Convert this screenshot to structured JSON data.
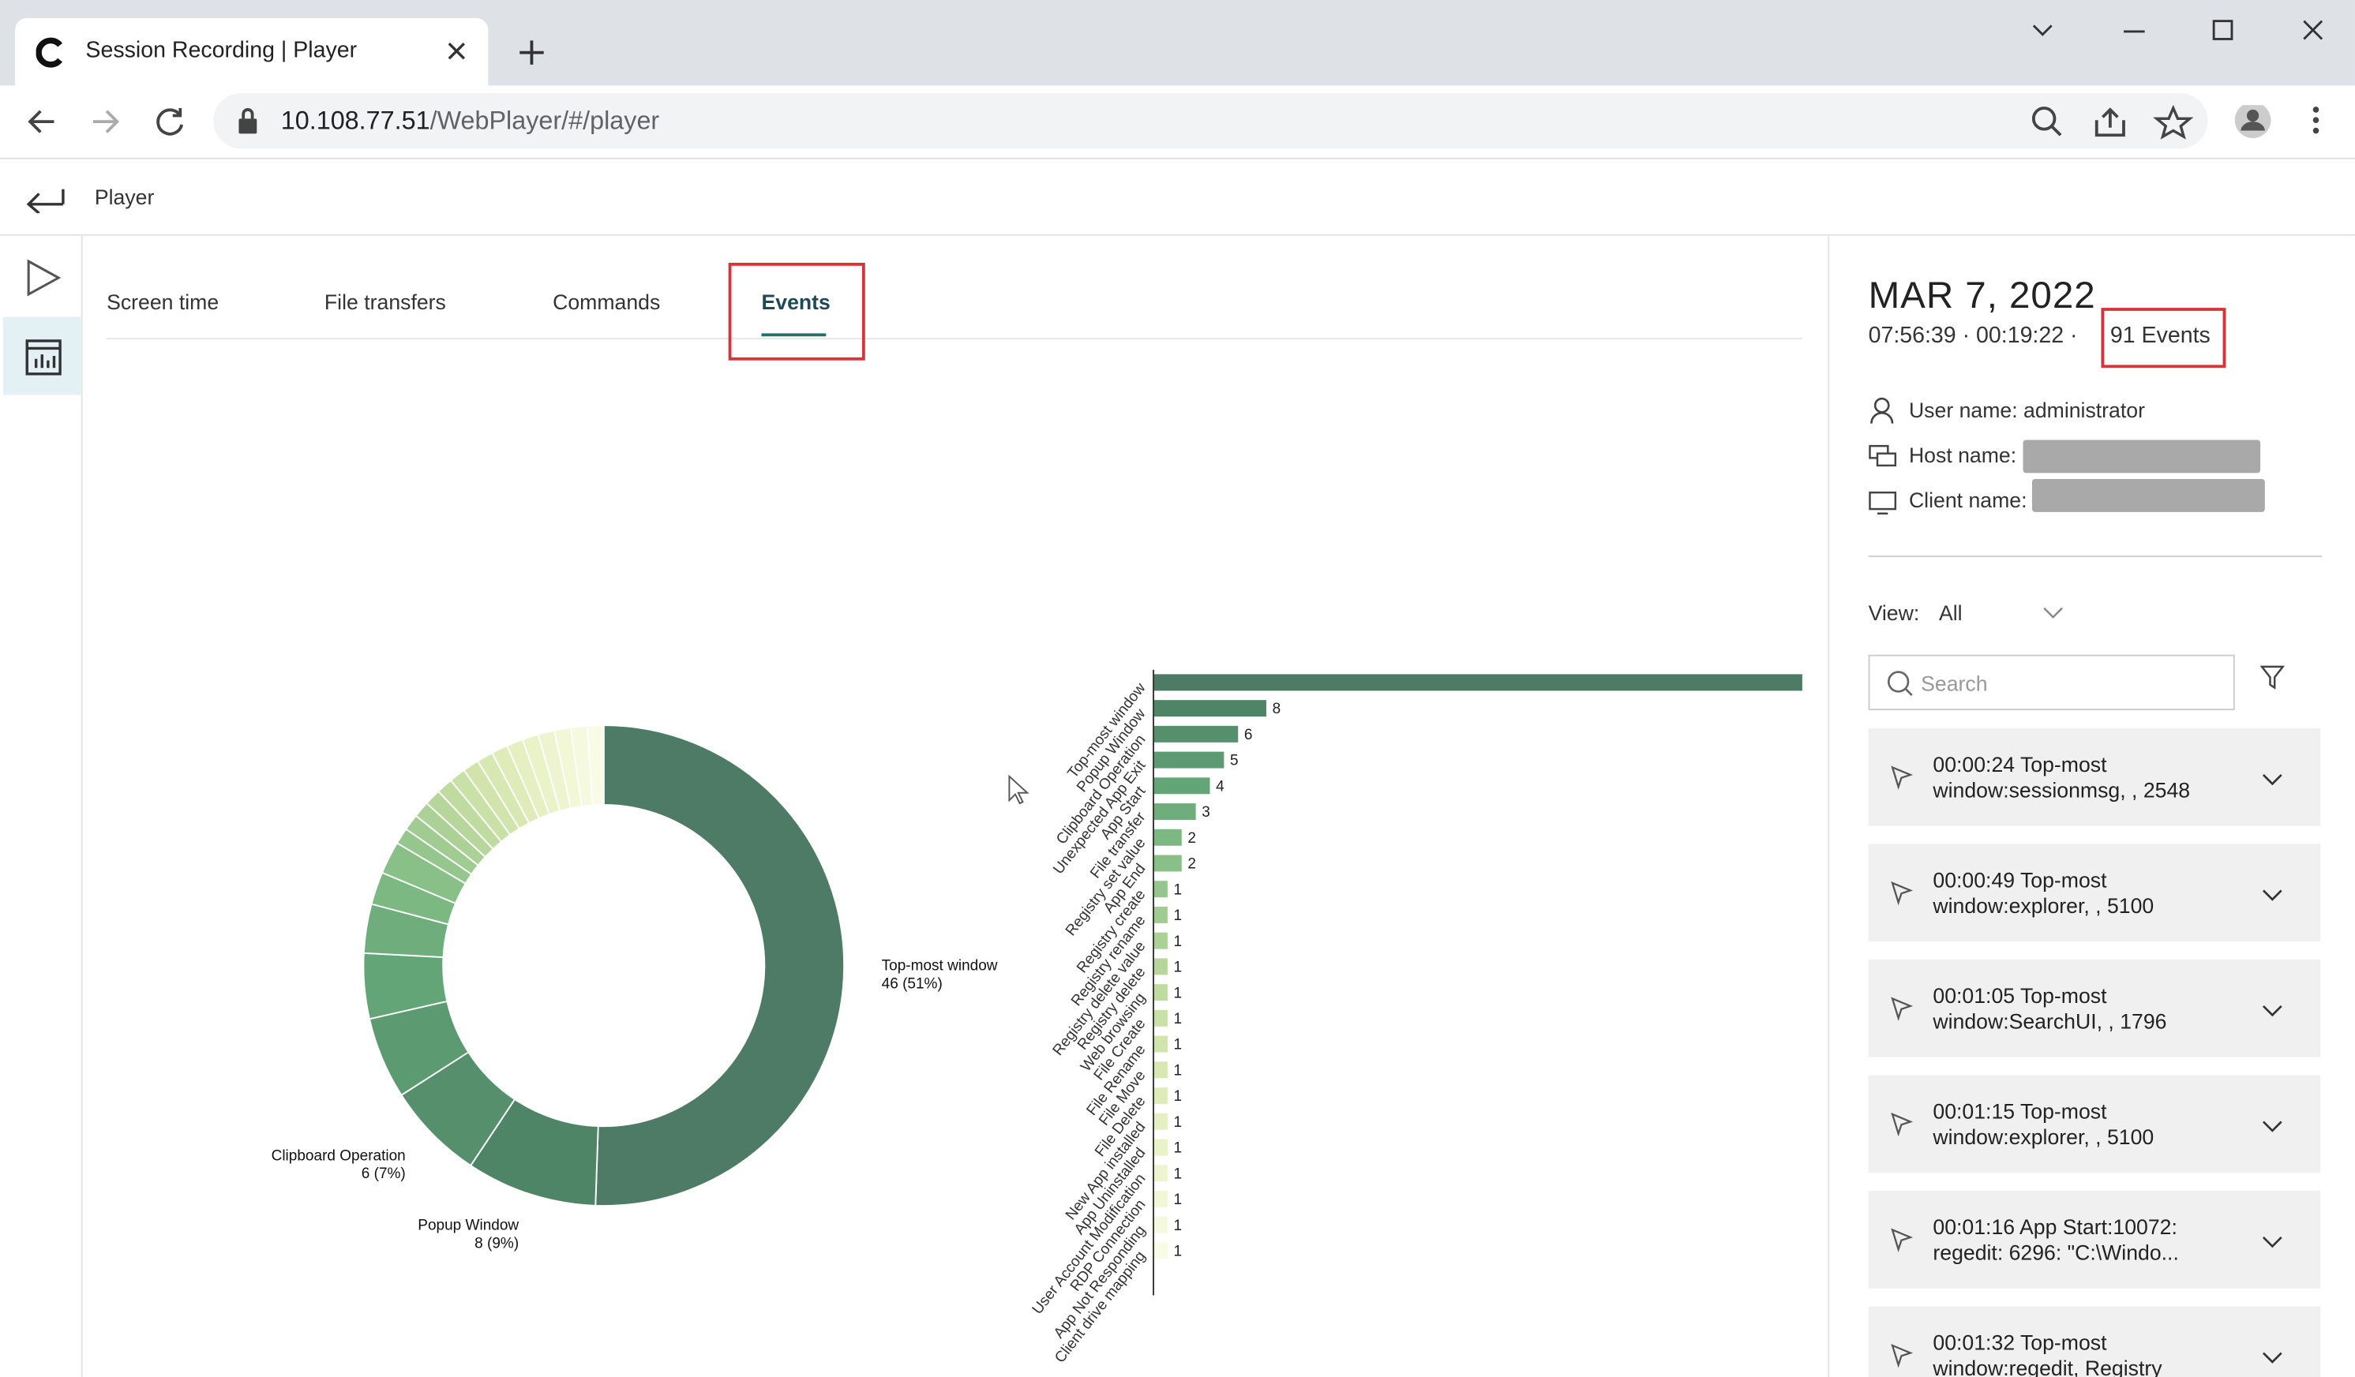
{
  "browser": {
    "tab_title": "Session Recording | Player",
    "url_host": "10.108.77.51",
    "url_path": "/WebPlayer/#/player"
  },
  "header": {
    "title": "Player"
  },
  "tabs": [
    "Screen time",
    "File transfers",
    "Commands",
    "Events"
  ],
  "chart_data": [
    {
      "type": "pie",
      "donut": true,
      "categories": [
        "Top-most window",
        "Popup Window",
        "Clipboard Operation",
        null,
        null,
        null,
        null,
        null,
        null,
        null,
        null,
        null,
        null,
        null,
        null,
        null,
        null,
        null,
        null,
        null,
        null,
        null,
        null
      ],
      "values": [
        46,
        8,
        6,
        5,
        4,
        3,
        2,
        2,
        1,
        1,
        1,
        1,
        1,
        1,
        1,
        1,
        1,
        1,
        1,
        1,
        1,
        1,
        1
      ],
      "value_labels": [
        "46 (51%)",
        "8 (9%)",
        "6 (7%)",
        null,
        null,
        null,
        null,
        null,
        null,
        null,
        null,
        null,
        null,
        null,
        null,
        null,
        null,
        null,
        null,
        null,
        null,
        null,
        null
      ],
      "colors": [
        "#4e7b66",
        "#4e8566",
        "#558f6c",
        "#5c9a72",
        "#64a577",
        "#6fae7c",
        "#7bb882",
        "#88c088",
        "#94c68d",
        "#a0cc91",
        "#abd196",
        "#b6d69b",
        "#c0dba0",
        "#c9e0a6",
        "#d1e4ac",
        "#d8e8b3",
        "#dfecba",
        "#e5efc1",
        "#eaf2c8",
        "#eef4cf",
        "#f2f7d6",
        "#f5f9de",
        "#f8fbe6"
      ]
    },
    {
      "type": "hbar",
      "categories": [
        "Top-most window",
        "Popup Window",
        "Clipboard Operation",
        "Unexpected App Exit",
        "App Start",
        "File transfer",
        "Registry set value",
        "App End",
        "Registry create",
        "Registry rename",
        "Registry delete value",
        "Registry delete",
        "Web browsing",
        "File Create",
        "File Rename",
        "File Move",
        "File Delete",
        "New App installed",
        "App Uninstalled",
        "User Account Modification",
        "RDP Connection",
        "App Not Responding",
        "Client drive mapping"
      ],
      "values": [
        46,
        8,
        6,
        5,
        4,
        3,
        2,
        2,
        1,
        1,
        1,
        1,
        1,
        1,
        1,
        1,
        1,
        1,
        1,
        1,
        1,
        1,
        1
      ],
      "xlim": [
        0,
        46
      ],
      "colors": [
        "#4e7b66",
        "#4e8566",
        "#558f6c",
        "#5c9a72",
        "#64a577",
        "#6fae7c",
        "#7bb882",
        "#88c088",
        "#94c68d",
        "#a0cc91",
        "#abd196",
        "#b6d69b",
        "#c0dba0",
        "#c9e0a6",
        "#d1e4ac",
        "#d8e8b3",
        "#dfecba",
        "#e5efc1",
        "#eaf2c8",
        "#eef4cf",
        "#f2f7d6",
        "#f5f9de",
        "#f8fbe6"
      ]
    }
  ],
  "session": {
    "date": "MAR 7, 2022",
    "times": "07:56:39 · 00:19:22 ·",
    "events": "91 Events",
    "user": "User name: administrator",
    "host": "Host name:",
    "client": "Client name:",
    "view_label": "View:",
    "view_value": "All",
    "search": "Search"
  },
  "event_list": [
    [
      "00:00:24 Top-most",
      "window:sessionmsg, , 2548"
    ],
    [
      "00:00:49 Top-most",
      "window:explorer, , 5100"
    ],
    [
      "00:01:05 Top-most",
      "window:SearchUI, , 1796"
    ],
    [
      "00:01:15 Top-most",
      "window:explorer, , 5100"
    ],
    [
      "00:01:16 App Start:10072:",
      "regedit: 6296: \"C:\\Windo..."
    ],
    [
      "00:01:32 Top-most",
      "window:regedit, Registry"
    ]
  ]
}
